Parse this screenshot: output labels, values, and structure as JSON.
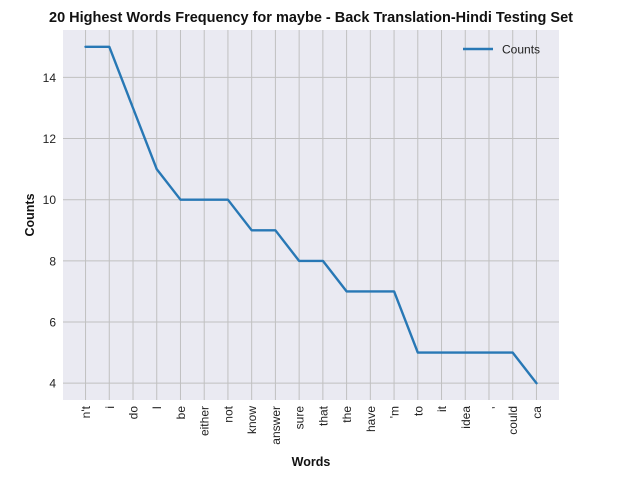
{
  "chart_data": {
    "type": "line",
    "title": "20 Highest Words Frequency for maybe - Back Translation-Hindi Testing Set",
    "xlabel": "Words",
    "ylabel": "Counts",
    "categories": [
      "n't",
      "i",
      "do",
      "I",
      "be",
      "either",
      "not",
      "know",
      "answer",
      "sure",
      "that",
      "the",
      "have",
      "'m",
      "to",
      "it",
      "idea",
      ",",
      "could",
      "ca"
    ],
    "series": [
      {
        "name": "Counts",
        "values": [
          15,
          15,
          13,
          11,
          10,
          10,
          10,
          9,
          9,
          8,
          8,
          7,
          7,
          7,
          5,
          5,
          5,
          5,
          5,
          4
        ]
      }
    ],
    "ylim": [
      3.45,
      15.55
    ],
    "yticks": [
      4,
      6,
      8,
      10,
      12,
      14
    ],
    "grid": true,
    "legend_position": "top-right",
    "colors": {
      "line": "#2878b5",
      "plot_bg": "#eaeaf2",
      "grid": "#c0c0c0"
    }
  }
}
